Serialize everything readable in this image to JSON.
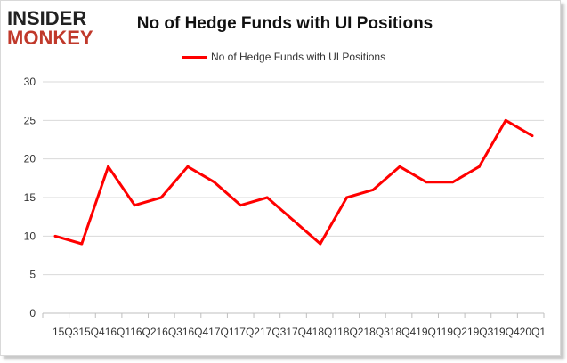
{
  "logo": {
    "line1": "INSIDER",
    "line2": "MONKEY"
  },
  "chart_data": {
    "type": "line",
    "title": "No of Hedge Funds with UI Positions",
    "xlabel": "",
    "ylabel": "",
    "ylim": [
      0,
      30
    ],
    "yticks": [
      0,
      5,
      10,
      15,
      20,
      25,
      30
    ],
    "grid": true,
    "legend_position": "top-center",
    "x_tick_text": "15Q315Q416Q116Q216Q316Q417Q117Q217Q317Q418Q118Q218Q318Q419Q119Q219Q319Q420Q1",
    "categories": [
      "15Q3",
      "15Q4",
      "16Q1",
      "16Q2",
      "16Q3",
      "16Q4",
      "17Q1",
      "17Q2",
      "17Q3",
      "17Q4",
      "18Q1",
      "18Q2",
      "18Q3",
      "18Q4",
      "19Q1",
      "19Q2",
      "19Q3",
      "19Q4",
      "20Q1"
    ],
    "series": [
      {
        "name": "No of Hedge Funds with UI Positions",
        "color": "#ff0000",
        "values": [
          10,
          9,
          19,
          14,
          15,
          19,
          17,
          14,
          15,
          12,
          9,
          15,
          16,
          19,
          17,
          17,
          19,
          25,
          23
        ]
      }
    ]
  }
}
